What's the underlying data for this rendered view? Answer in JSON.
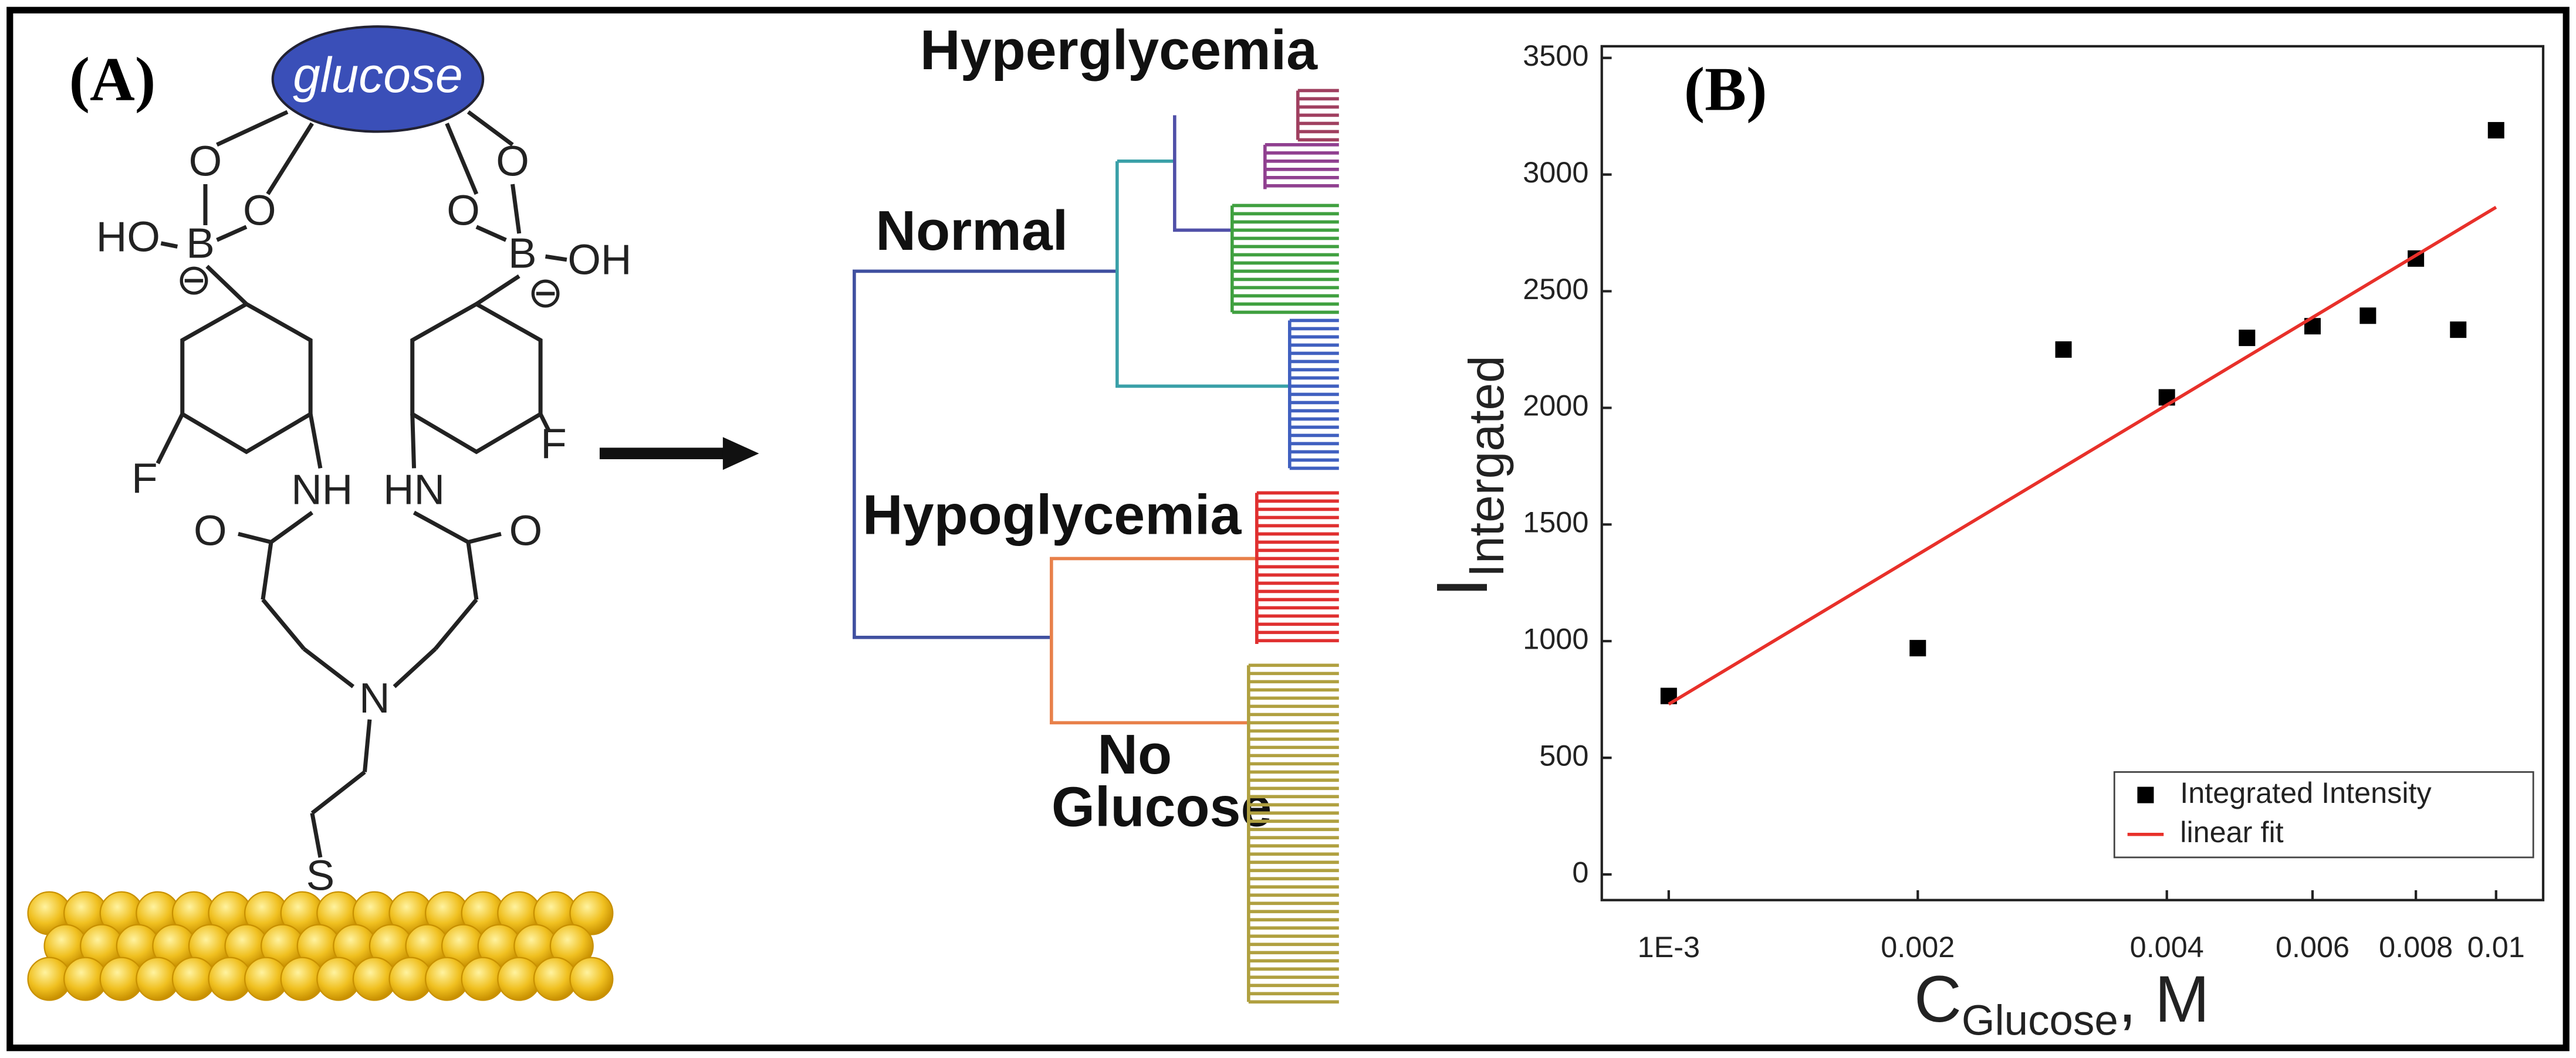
{
  "panel_a": {
    "label": "(A)",
    "molecule": "glucose",
    "atoms": [
      "O",
      "O",
      "O",
      "O",
      "HO",
      "B",
      "B",
      "OH",
      "⊖",
      "⊖",
      "F",
      "F",
      "NH",
      "HN",
      "O",
      "O",
      "N",
      "S"
    ],
    "groups": [
      "Hyperglycemia",
      "Normal",
      "Hypoglycemia",
      "No",
      "Glucose"
    ]
  },
  "chart_data": {
    "type": "scatter",
    "label": "(B)",
    "x_label": {
      "main": "C",
      "sub": "Glucose",
      "suffix": ", M"
    },
    "y_label": {
      "main": "I",
      "sub": "Intergated"
    },
    "xscale": "log",
    "xlim": [
      0.00083,
      0.0114
    ],
    "xticks": [
      {
        "value": 0.001,
        "label": "1E-3"
      },
      0.002,
      0.004,
      0.006,
      0.008,
      0.01
    ],
    "ylim": [
      -110,
      3550
    ],
    "yticks": [
      0,
      500,
      1000,
      1500,
      2000,
      2500,
      3000,
      3500
    ],
    "legend": "lower right",
    "series": [
      {
        "name": "Integrated Intensity",
        "color": "#000000",
        "mode": "markers",
        "x": [
          0.001,
          0.002,
          0.003,
          0.004,
          0.005,
          0.006,
          0.007,
          0.008,
          0.009,
          0.01
        ],
        "values": [
          765,
          970,
          2250,
          2045,
          2300,
          2350,
          2395,
          2640,
          2335,
          3190
        ]
      },
      {
        "name": "linear fit",
        "color": "#e8302a",
        "mode": "line",
        "x": [
          0.001,
          0.01
        ],
        "values": [
          730,
          2860
        ]
      }
    ]
  }
}
